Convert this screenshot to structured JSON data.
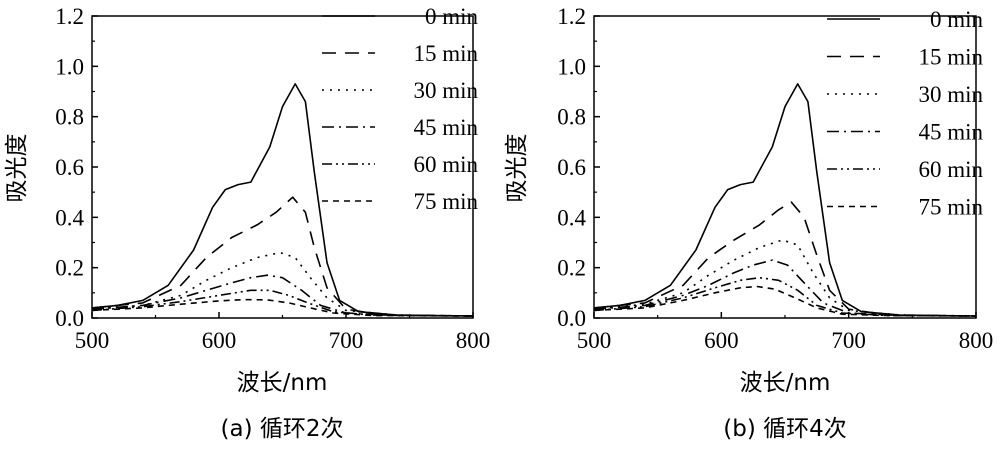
{
  "chart_data": [
    {
      "type": "line",
      "caption": "(a) 循环2次",
      "xlabel": "波长/nm",
      "ylabel": "吸光度",
      "xlim": [
        500,
        800
      ],
      "ylim": [
        0,
        1.2
      ],
      "x_ticks": [
        "500",
        "600",
        "700",
        "800"
      ],
      "y_ticks": [
        "0.0",
        "0.2",
        "0.4",
        "0.6",
        "0.8",
        "1.0",
        "1.2"
      ],
      "legend_position": "top-right",
      "series": [
        {
          "name": "0 min",
          "style": "solid",
          "points": [
            [
              500,
              0.04
            ],
            [
              520,
              0.05
            ],
            [
              540,
              0.07
            ],
            [
              560,
              0.13
            ],
            [
              580,
              0.27
            ],
            [
              595,
              0.44
            ],
            [
              605,
              0.51
            ],
            [
              615,
              0.53
            ],
            [
              625,
              0.54
            ],
            [
              640,
              0.68
            ],
            [
              650,
              0.84
            ],
            [
              660,
              0.93
            ],
            [
              668,
              0.86
            ],
            [
              675,
              0.58
            ],
            [
              685,
              0.22
            ],
            [
              695,
              0.07
            ],
            [
              710,
              0.025
            ],
            [
              740,
              0.012
            ],
            [
              800,
              0.008
            ]
          ]
        },
        {
          "name": "15 min",
          "style": "long-dash",
          "points": [
            [
              500,
              0.04
            ],
            [
              540,
              0.06
            ],
            [
              570,
              0.13
            ],
            [
              590,
              0.24
            ],
            [
              610,
              0.32
            ],
            [
              630,
              0.37
            ],
            [
              645,
              0.42
            ],
            [
              658,
              0.48
            ],
            [
              668,
              0.42
            ],
            [
              675,
              0.28
            ],
            [
              685,
              0.12
            ],
            [
              700,
              0.035
            ],
            [
              730,
              0.012
            ],
            [
              800,
              0.008
            ]
          ]
        },
        {
          "name": "30 min",
          "style": "dotted",
          "points": [
            [
              500,
              0.035
            ],
            [
              540,
              0.05
            ],
            [
              570,
              0.09
            ],
            [
              590,
              0.15
            ],
            [
              610,
              0.2
            ],
            [
              630,
              0.24
            ],
            [
              648,
              0.26
            ],
            [
              660,
              0.24
            ],
            [
              672,
              0.16
            ],
            [
              685,
              0.08
            ],
            [
              700,
              0.03
            ],
            [
              740,
              0.012
            ],
            [
              800,
              0.008
            ]
          ]
        },
        {
          "name": "45 min",
          "style": "dash-dot",
          "points": [
            [
              500,
              0.035
            ],
            [
              540,
              0.05
            ],
            [
              570,
              0.08
            ],
            [
              590,
              0.11
            ],
            [
              610,
              0.14
            ],
            [
              625,
              0.16
            ],
            [
              638,
              0.17
            ],
            [
              650,
              0.16
            ],
            [
              665,
              0.11
            ],
            [
              680,
              0.05
            ],
            [
              700,
              0.02
            ],
            [
              740,
              0.01
            ],
            [
              800,
              0.008
            ]
          ]
        },
        {
          "name": "60 min",
          "style": "dash-dot-dot",
          "points": [
            [
              500,
              0.03
            ],
            [
              540,
              0.045
            ],
            [
              570,
              0.065
            ],
            [
              600,
              0.09
            ],
            [
              625,
              0.11
            ],
            [
              640,
              0.11
            ],
            [
              655,
              0.09
            ],
            [
              670,
              0.06
            ],
            [
              690,
              0.025
            ],
            [
              720,
              0.012
            ],
            [
              800,
              0.008
            ]
          ]
        },
        {
          "name": "75 min",
          "style": "short-dash",
          "points": [
            [
              500,
              0.03
            ],
            [
              540,
              0.04
            ],
            [
              570,
              0.055
            ],
            [
              600,
              0.068
            ],
            [
              620,
              0.073
            ],
            [
              638,
              0.072
            ],
            [
              655,
              0.06
            ],
            [
              672,
              0.04
            ],
            [
              690,
              0.02
            ],
            [
              720,
              0.01
            ],
            [
              800,
              0.008
            ]
          ]
        }
      ]
    },
    {
      "type": "line",
      "caption": "(b) 循环4次",
      "xlabel": "波长/nm",
      "ylabel": "吸光度",
      "xlim": [
        500,
        800
      ],
      "ylim": [
        0,
        1.2
      ],
      "x_ticks": [
        "500",
        "600",
        "700",
        "800"
      ],
      "y_ticks": [
        "0.0",
        "0.2",
        "0.4",
        "0.6",
        "0.8",
        "1.0",
        "1.2"
      ],
      "legend_position": "top-right",
      "series": [
        {
          "name": "0 min",
          "style": "solid",
          "points": [
            [
              500,
              0.04
            ],
            [
              520,
              0.05
            ],
            [
              540,
              0.07
            ],
            [
              560,
              0.13
            ],
            [
              580,
              0.27
            ],
            [
              595,
              0.44
            ],
            [
              605,
              0.51
            ],
            [
              615,
              0.53
            ],
            [
              625,
              0.54
            ],
            [
              640,
              0.68
            ],
            [
              650,
              0.84
            ],
            [
              660,
              0.93
            ],
            [
              668,
              0.86
            ],
            [
              675,
              0.58
            ],
            [
              685,
              0.22
            ],
            [
              695,
              0.07
            ],
            [
              710,
              0.025
            ],
            [
              740,
              0.012
            ],
            [
              800,
              0.008
            ]
          ]
        },
        {
          "name": "15 min",
          "style": "long-dash",
          "points": [
            [
              500,
              0.04
            ],
            [
              540,
              0.06
            ],
            [
              570,
              0.13
            ],
            [
              590,
              0.24
            ],
            [
              610,
              0.31
            ],
            [
              630,
              0.37
            ],
            [
              645,
              0.43
            ],
            [
              655,
              0.46
            ],
            [
              665,
              0.4
            ],
            [
              675,
              0.25
            ],
            [
              685,
              0.11
            ],
            [
              700,
              0.035
            ],
            [
              730,
              0.012
            ],
            [
              800,
              0.008
            ]
          ]
        },
        {
          "name": "30 min",
          "style": "dotted",
          "points": [
            [
              500,
              0.035
            ],
            [
              540,
              0.055
            ],
            [
              570,
              0.1
            ],
            [
              590,
              0.17
            ],
            [
              610,
              0.23
            ],
            [
              630,
              0.28
            ],
            [
              648,
              0.31
            ],
            [
              660,
              0.29
            ],
            [
              672,
              0.18
            ],
            [
              685,
              0.08
            ],
            [
              700,
              0.03
            ],
            [
              740,
              0.012
            ],
            [
              800,
              0.008
            ]
          ]
        },
        {
          "name": "45 min",
          "style": "dash-dot",
          "points": [
            [
              500,
              0.035
            ],
            [
              540,
              0.05
            ],
            [
              570,
              0.09
            ],
            [
              590,
              0.13
            ],
            [
              610,
              0.18
            ],
            [
              625,
              0.21
            ],
            [
              640,
              0.23
            ],
            [
              652,
              0.21
            ],
            [
              665,
              0.14
            ],
            [
              680,
              0.06
            ],
            [
              700,
              0.02
            ],
            [
              740,
              0.01
            ],
            [
              800,
              0.008
            ]
          ]
        },
        {
          "name": "60 min",
          "style": "dash-dot-dot",
          "points": [
            [
              500,
              0.03
            ],
            [
              540,
              0.045
            ],
            [
              570,
              0.08
            ],
            [
              595,
              0.12
            ],
            [
              615,
              0.15
            ],
            [
              630,
              0.16
            ],
            [
              645,
              0.15
            ],
            [
              660,
              0.11
            ],
            [
              675,
              0.05
            ],
            [
              695,
              0.02
            ],
            [
              730,
              0.01
            ],
            [
              800,
              0.008
            ]
          ]
        },
        {
          "name": "75 min",
          "style": "short-dash",
          "points": [
            [
              500,
              0.03
            ],
            [
              540,
              0.04
            ],
            [
              570,
              0.07
            ],
            [
              595,
              0.1
            ],
            [
              615,
              0.12
            ],
            [
              628,
              0.125
            ],
            [
              642,
              0.115
            ],
            [
              658,
              0.08
            ],
            [
              675,
              0.04
            ],
            [
              695,
              0.015
            ],
            [
              730,
              0.01
            ],
            [
              800,
              0.008
            ]
          ]
        }
      ]
    }
  ]
}
